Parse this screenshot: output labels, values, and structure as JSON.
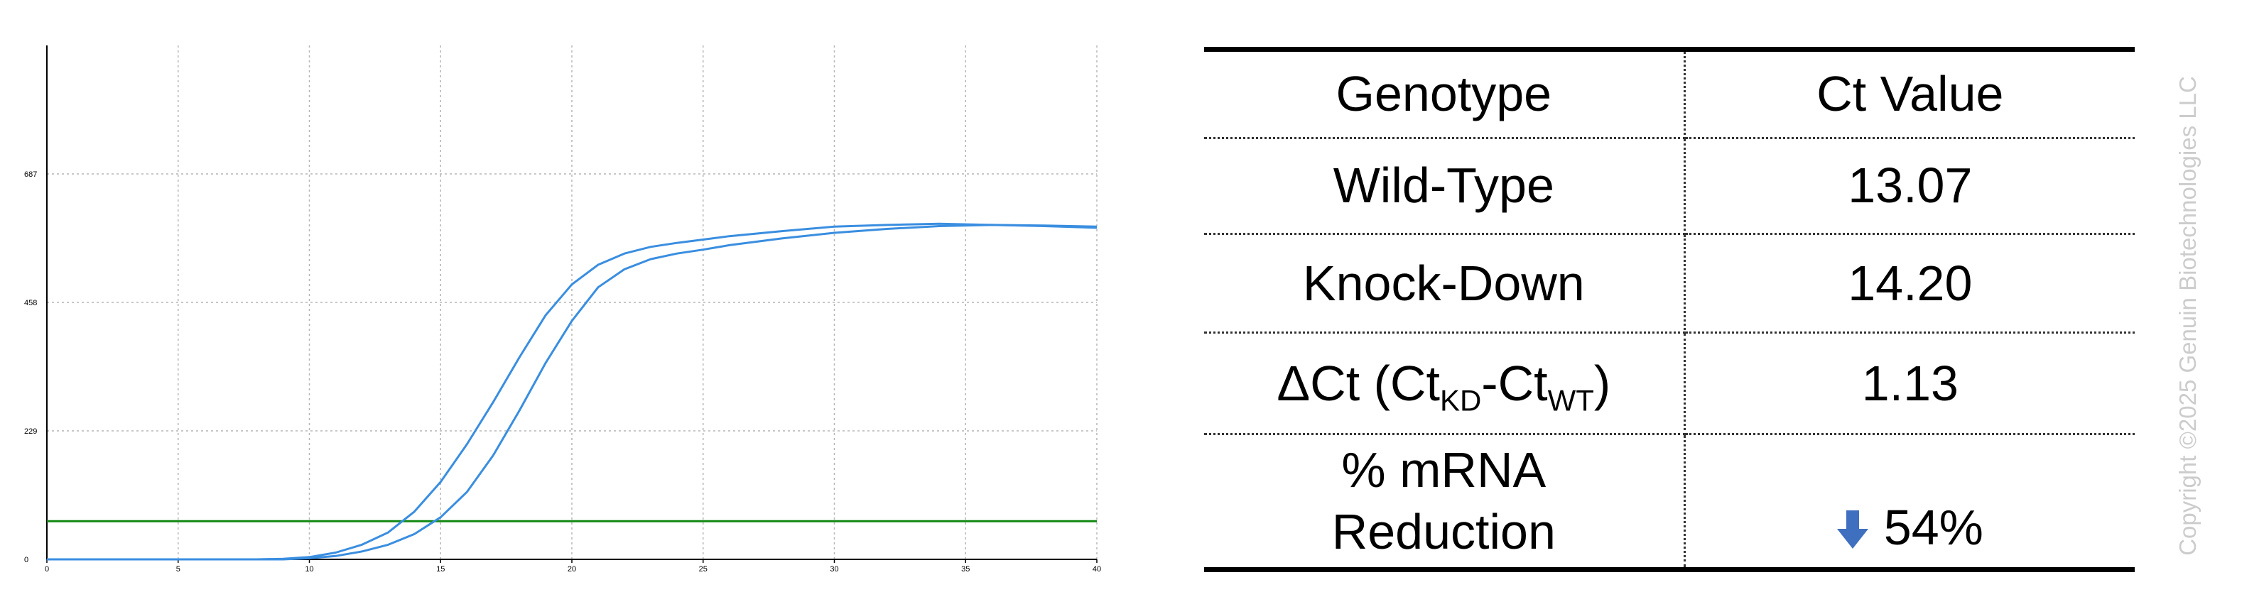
{
  "chart_data": {
    "type": "line",
    "title": "",
    "xlabel": "",
    "ylabel": "",
    "xlim": [
      0,
      40
    ],
    "ylim": [
      0,
      916
    ],
    "x_ticks": [
      "0",
      "5",
      "10",
      "15",
      "20",
      "25",
      "30",
      "35",
      "40"
    ],
    "y_ticks": [
      "0",
      "229",
      "458",
      "687"
    ],
    "grid": true,
    "threshold": {
      "y": 68,
      "color": "#118811"
    },
    "series": [
      {
        "color": "#3a8ee0",
        "x": [
          0,
          5,
          8,
          9,
          10,
          11,
          12,
          13,
          14,
          15,
          16,
          17,
          18,
          19,
          20,
          21,
          22,
          23,
          24,
          25,
          26,
          28,
          30,
          32,
          34,
          36,
          38,
          40
        ],
        "y": [
          0,
          0,
          0,
          1,
          4,
          12,
          26,
          48,
          85,
          138,
          205,
          280,
          360,
          435,
          490,
          525,
          545,
          557,
          564,
          570,
          576,
          585,
          593,
          596,
          598,
          596,
          594,
          591
        ]
      },
      {
        "color": "#3a8ee0",
        "x": [
          0,
          5,
          8,
          9,
          10,
          11,
          12,
          13,
          14,
          15,
          16,
          17,
          18,
          19,
          20,
          21,
          22,
          23,
          24,
          25,
          26,
          28,
          30,
          32,
          34,
          36,
          38,
          40
        ],
        "y": [
          0,
          0,
          0,
          0,
          2,
          6,
          14,
          26,
          45,
          75,
          120,
          185,
          265,
          350,
          425,
          485,
          517,
          535,
          545,
          552,
          560,
          572,
          582,
          589,
          594,
          596,
          595,
          593
        ]
      }
    ]
  },
  "table": {
    "header": {
      "col1": "Genotype",
      "col2": "Ct Value"
    },
    "rows": {
      "wt": {
        "label": "Wild-Type",
        "value": "13.07"
      },
      "kd": {
        "label": "Knock-Down",
        "value": "14.20"
      },
      "dct": {
        "label_prefix": "ΔCt (Ct",
        "sub1": "KD",
        "label_mid": "-Ct",
        "sub2": "WT",
        "label_suffix": ")",
        "value": "1.13"
      },
      "reduction": {
        "label_line1": "% mRNA",
        "label_line2": "Reduction",
        "value": "54%",
        "arrow_icon": "down-arrow-icon",
        "arrow_color": "#3f6fbf"
      }
    }
  },
  "copyright": "Copyright ©2025 Genuin Biotechnologies LLC"
}
